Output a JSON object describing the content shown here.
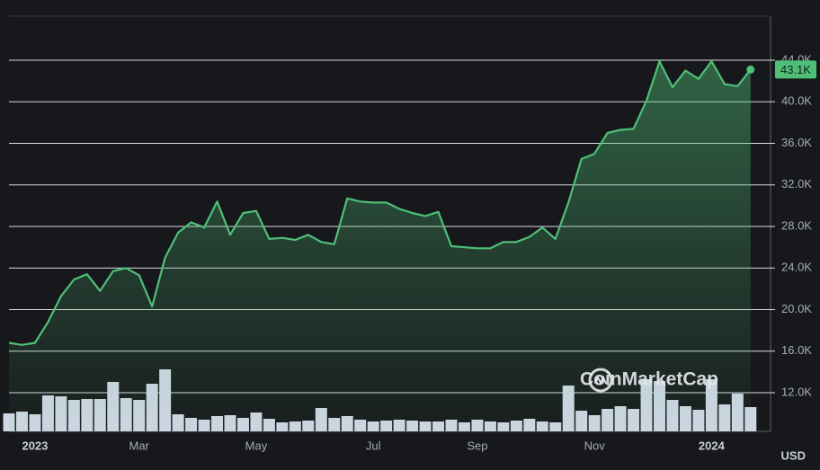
{
  "chart_data": {
    "type": "line",
    "categories": [
      null,
      null,
      "2023",
      null,
      null,
      null,
      null,
      null,
      null,
      null,
      "Mar",
      null,
      null,
      null,
      null,
      null,
      null,
      null,
      null,
      "May",
      null,
      null,
      null,
      null,
      null,
      null,
      null,
      null,
      "Jul",
      null,
      null,
      null,
      null,
      null,
      null,
      null,
      "Sep",
      null,
      null,
      null,
      null,
      null,
      null,
      null,
      null,
      "Nov",
      null,
      null,
      null,
      null,
      null,
      null,
      null,
      null,
      "2024",
      null,
      null,
      null
    ],
    "series": [
      {
        "color": "#4fbf78",
        "values": [
          16800,
          16600,
          16800,
          18800,
          21300,
          22900,
          23400,
          21800,
          23700,
          24000,
          23300,
          20300,
          25000,
          27400,
          28400,
          27900,
          30400,
          27200,
          29300,
          29500,
          26800,
          26900,
          26700,
          27200,
          26500,
          26300,
          30700,
          30400,
          30300,
          30300,
          29700,
          29300,
          29000,
          29400,
          26100,
          26000,
          25900,
          25900,
          26500,
          26500,
          27000,
          27900,
          26800,
          30300,
          34500,
          35000,
          37000,
          37300,
          37400,
          40100,
          43900,
          41400,
          43000,
          42200,
          43900,
          41700,
          41500,
          43100
        ],
        "value_labels": [
          null,
          null,
          null,
          null,
          null,
          null,
          null,
          null,
          null,
          null,
          null,
          null,
          null,
          null,
          null,
          null,
          null,
          null,
          null,
          null,
          null,
          null,
          null,
          null,
          null,
          null,
          null,
          null,
          null,
          null,
          null,
          null,
          null,
          null,
          null,
          null,
          null,
          null,
          null,
          null,
          null,
          null,
          null,
          null,
          null,
          null,
          null,
          null,
          null,
          null,
          null,
          null,
          null,
          null,
          null,
          null,
          null,
          "43.1K"
        ]
      }
    ],
    "volume": {
      "color": "#cfd6e4",
      "ylim": [
        0,
        100
      ],
      "values": [
        20,
        22,
        19,
        40,
        39,
        35,
        36,
        36,
        55,
        37,
        35,
        53,
        69,
        19,
        15,
        13,
        17,
        18,
        15,
        21,
        14,
        10,
        11,
        12,
        26,
        15,
        17,
        13,
        11,
        12,
        13,
        12,
        11,
        11,
        13,
        10,
        13,
        11,
        10,
        12,
        14,
        11,
        10,
        51,
        23,
        18,
        25,
        28,
        25,
        58,
        56,
        35,
        28,
        24,
        58,
        30,
        42,
        27
      ]
    },
    "ylim": [
      8280,
      48240
    ],
    "yticks": [
      {
        "value": 12000,
        "label": "12.0K"
      },
      {
        "value": 16000,
        "label": "16.0K"
      },
      {
        "value": 20000,
        "label": "20.0K"
      },
      {
        "value": 24000,
        "label": "24.0K"
      },
      {
        "value": 28000,
        "label": "28.0K"
      },
      {
        "value": 32000,
        "label": "32.0K"
      },
      {
        "value": 36000,
        "label": "36.0K"
      },
      {
        "value": 40000,
        "label": "40.0K"
      },
      {
        "value": 44000,
        "label": "44.0K"
      }
    ],
    "grid": true,
    "currency": "USD",
    "watermark": "CoinMarketCap"
  }
}
